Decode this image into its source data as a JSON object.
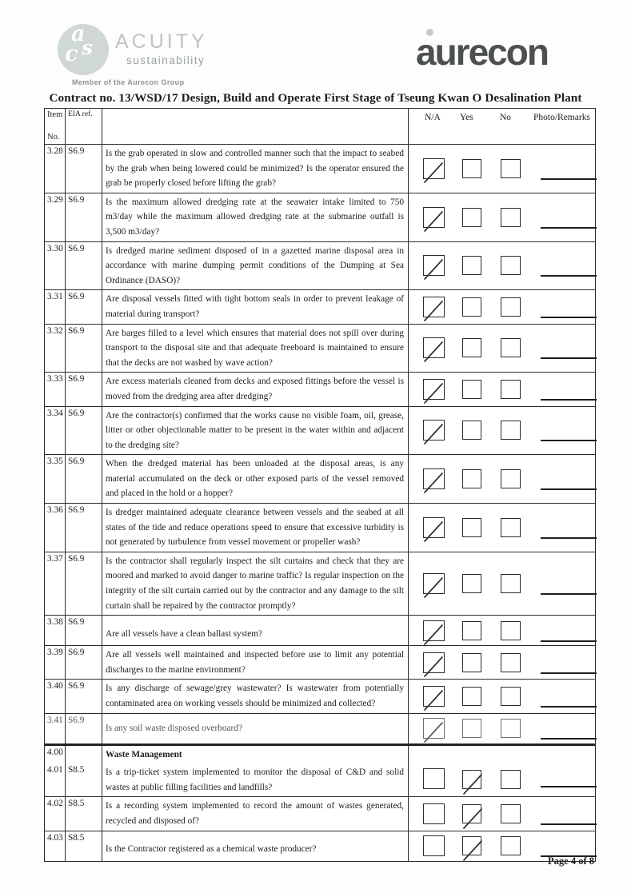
{
  "brand": {
    "acuity_monogram_a": "a",
    "acuity_monogram_c": "c",
    "acuity_monogram_s": "s",
    "acuity_name": "ACUITY",
    "acuity_subtitle": "sustainability",
    "acuity_member": "Member of the Aurecon Group",
    "aurecon_name": "aurecon",
    "aurecon_gray": "#4c514e",
    "acuity_soft_green": "#cfd8d2"
  },
  "title": "Contract no.  13/WSD/17 Design, Build and Operate First Stage of Tseung Kwan O Desalination Plant",
  "table": {
    "header": {
      "item_top": "Item",
      "item_bottom": "No.",
      "eia": "EIA ref.",
      "na": "N/A",
      "yes": "Yes",
      "no": "No",
      "remarks": "Photo/Remarks"
    },
    "rows": [
      {
        "entries": [
          {
            "item": "3.28",
            "eia": "S6.9",
            "text": "Is the grab operated in slow and controlled manner such that the impact to seabed by the grab when being lowered could be minimized? Is the operator ensured the grab be properly closed before lifting the grab?"
          }
        ],
        "check": "na"
      },
      {
        "entries": [
          {
            "item": "3.29",
            "eia": "S6.9",
            "text": "Is the maximum allowed dredging rate at the seawater intake limited to 750 m3/day while the maximum allowed dredging rate at the submarine outfall is 3,500 m3/day?"
          }
        ],
        "check": "na"
      },
      {
        "entries": [
          {
            "item": "3.30",
            "eia": "S6.9",
            "text": "Is dredged marine sediment disposed of in a gazetted marine disposal area in accordance with marine dumping permit conditions of the Dumping at Sea Ordinance (DASO)?"
          }
        ],
        "check": "na"
      },
      {
        "entries": [
          {
            "item": "3.31",
            "eia": "S6.9",
            "text": "Are disposal vessels fitted with tight bottom seals in order to prevent leakage of material during transport?"
          }
        ],
        "check": "na"
      },
      {
        "entries": [
          {
            "item": "3.32",
            "eia": "S6.9",
            "text": "Are barges filled to a level which ensures that material does not spill over during transport to the disposal site and that adequate freeboard is maintained to ensure that the decks are not washed by wave action?"
          }
        ],
        "check": "na"
      },
      {
        "entries": [
          {
            "item": "3.33",
            "eia": "S6.9",
            "text": "Are excess materials cleaned from decks and exposed fittings before the vessel is moved from the dredging area after dredging?"
          }
        ],
        "check": "na"
      },
      {
        "entries": [
          {
            "item": "3.34",
            "eia": "S6.9",
            "text": "Are the contractor(s) confirmed that the works cause no visible foam, oil, grease, litter or other objectionable matter to be present in the water within and adjacent to the dredging site?"
          }
        ],
        "check": "na"
      },
      {
        "entries": [
          {
            "item": "3.35",
            "eia": "S6.9",
            "text": "When the dredged material has been unloaded at the disposal areas, is any material accumulated on the deck or other exposed parts of the vessel removed and placed in the hold or a hopper?"
          }
        ],
        "check": "na"
      },
      {
        "entries": [
          {
            "item": "3.36",
            "eia": "S6.9",
            "text": "Is dredger maintained adequate clearance between vessels and the seabed at all states of the tide and reduce operations speed to ensure that excessive turbidity is not generated by turbulence from vessel movement or propeller wash?"
          }
        ],
        "check": "na"
      },
      {
        "entries": [
          {
            "item": "3.37",
            "eia": "S6.9",
            "text": "Is the contractor shall regularly inspect the silt curtains and check that they are moored and marked to avoid danger to marine traffic? Is regular inspection on the integrity of the silt curtain carried out by the contractor and any damage to the silt curtain shall be repaired by the contractor promptly?"
          }
        ],
        "check": "na"
      },
      {
        "entries": [
          {
            "item": "3.38",
            "eia": "S6.9",
            "text": "Are all vessels have a clean ballast system?"
          }
        ],
        "check": "na",
        "valign": "bottom"
      },
      {
        "entries": [
          {
            "item": "3.39",
            "eia": "S6.9",
            "text": "Are all vessels well maintained and inspected before use to limit any potential discharges to the marine environment?"
          }
        ],
        "check": "na"
      },
      {
        "entries": [
          {
            "item": "3.40",
            "eia": "S6.9",
            "text": "Is any discharge of sewage/grey wastewater? Is wastewater from potentially contaminated area on working vessels should be minimized and collected?"
          }
        ],
        "check": "na"
      },
      {
        "entries": [
          {
            "item": "3.41",
            "eia": "S6.9",
            "text": "Is any soil waste disposed overboard?"
          }
        ],
        "check": "na",
        "faded": true,
        "valign": "mid"
      },
      {
        "entries": [
          {
            "item": "4.00",
            "eia": "",
            "text": "Waste Management",
            "bold": true
          },
          {
            "item": "4.01",
            "eia": "S8.5",
            "text": "Is a trip-ticket system implemented to monitor the disposal of C&D and solid wastes at public filling facilities and landfills?"
          }
        ],
        "check": "yes",
        "thick_top": true,
        "check_align": "bottom"
      },
      {
        "entries": [
          {
            "item": "4.02",
            "eia": "S8.5",
            "text": "Is a recording system implemented to record the amount of wastes generated, recycled and disposed of?"
          }
        ],
        "check": "yes"
      },
      {
        "entries": [
          {
            "item": "4.03",
            "eia": "S8.5",
            "text": "Is the Contractor registered as a chemical waste producer?"
          }
        ],
        "check": "yes",
        "valign": "bottom"
      }
    ]
  },
  "footer": {
    "page_label": "Page 4 of 8"
  }
}
